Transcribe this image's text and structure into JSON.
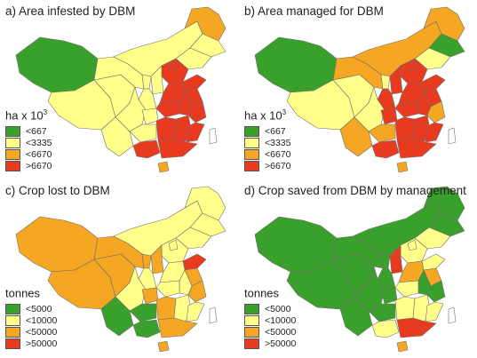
{
  "colors": {
    "green": "#3aa02c",
    "yellow": "#ffff8a",
    "orange": "#f5a623",
    "red": "#e83a1e",
    "grey": "#ffffff",
    "border": "#6f6f6f"
  },
  "panels": [
    {
      "id": "a",
      "title": "a) Area infested by DBM",
      "unit_base": "ha x 10",
      "unit_exp": "3",
      "legend": [
        {
          "label": "<667",
          "color": "green"
        },
        {
          "label": "<3335",
          "color": "yellow"
        },
        {
          "label": "<6670",
          "color": "orange"
        },
        {
          "label": ">6670",
          "color": "red"
        }
      ],
      "regions": {
        "xinjiang": "green",
        "tibet": "yellow",
        "qinghai": "yellow",
        "gansu": "yellow",
        "innermongolia": "yellow",
        "heilongjiang": "orange",
        "jilin": "yellow",
        "liaoning": "yellow",
        "beijing": "red",
        "hebei": "red",
        "shanxi": "yellow",
        "shaanxi": "yellow",
        "ningxia": "yellow",
        "shandong": "red",
        "henan": "red",
        "jiangsu": "red",
        "anhui": "red",
        "hubei": "red",
        "sichuan": "yellow",
        "chongqing": "yellow",
        "yunnan": "yellow",
        "guizhou": "yellow",
        "hunan": "red",
        "jiangxi": "red",
        "zhejiang": "red",
        "fujian": "red",
        "guangdong": "red",
        "guangxi": "red",
        "hainan": "orange",
        "taiwan": "grey"
      }
    },
    {
      "id": "b",
      "title": "b) Area managed for DBM",
      "unit_base": "ha x 10",
      "unit_exp": "3",
      "legend": [
        {
          "label": "<667",
          "color": "green"
        },
        {
          "label": "<3335",
          "color": "yellow"
        },
        {
          "label": "<6670",
          "color": "orange"
        },
        {
          "label": ">6670",
          "color": "red"
        }
      ],
      "regions": {
        "xinjiang": "green",
        "tibet": "yellow",
        "qinghai": "yellow",
        "gansu": "orange",
        "innermongolia": "orange",
        "heilongjiang": "orange",
        "jilin": "green",
        "liaoning": "yellow",
        "beijing": "red",
        "hebei": "red",
        "shanxi": "red",
        "shaanxi": "red",
        "ningxia": "yellow",
        "shandong": "red",
        "henan": "red",
        "jiangsu": "red",
        "anhui": "red",
        "hubei": "red",
        "sichuan": "yellow",
        "chongqing": "red",
        "yunnan": "orange",
        "guizhou": "orange",
        "hunan": "red",
        "jiangxi": "red",
        "zhejiang": "orange",
        "fujian": "red",
        "guangdong": "red",
        "guangxi": "red",
        "hainan": "orange",
        "taiwan": "grey"
      }
    },
    {
      "id": "c",
      "title": "c) Crop lost to DBM",
      "unit_base": "tonnes",
      "unit_exp": "",
      "legend": [
        {
          "label": "<5000",
          "color": "green"
        },
        {
          "label": "<10000",
          "color": "yellow"
        },
        {
          "label": "<50000",
          "color": "orange"
        },
        {
          "label": ">50000",
          "color": "red"
        }
      ],
      "regions": {
        "xinjiang": "orange",
        "tibet": "orange",
        "qinghai": "orange",
        "gansu": "orange",
        "innermongolia": "yellow",
        "heilongjiang": "yellow",
        "jilin": "yellow",
        "liaoning": "yellow",
        "beijing": "yellow",
        "hebei": "yellow",
        "shanxi": "orange",
        "shaanxi": "yellow",
        "ningxia": "orange",
        "shandong": "red",
        "henan": "yellow",
        "jiangsu": "orange",
        "anhui": "yellow",
        "hubei": "yellow",
        "sichuan": "yellow",
        "chongqing": "orange",
        "yunnan": "green",
        "guizhou": "green",
        "hunan": "orange",
        "jiangxi": "yellow",
        "zhejiang": "orange",
        "fujian": "yellow",
        "guangdong": "orange",
        "guangxi": "green",
        "hainan": "orange",
        "taiwan": "grey"
      }
    },
    {
      "id": "d",
      "title": "d) Crop saved from DBM by management",
      "unit_base": "tonnes",
      "unit_exp": "",
      "legend": [
        {
          "label": "<5000",
          "color": "green"
        },
        {
          "label": "<10000",
          "color": "yellow"
        },
        {
          "label": "<50000",
          "color": "orange"
        },
        {
          "label": ">50000",
          "color": "red"
        }
      ],
      "regions": {
        "xinjiang": "green",
        "tibet": "green",
        "qinghai": "green",
        "gansu": "green",
        "innermongolia": "green",
        "heilongjiang": "green",
        "jilin": "green",
        "liaoning": "yellow",
        "beijing": "yellow",
        "hebei": "yellow",
        "shanxi": "red",
        "shaanxi": "green",
        "ningxia": "green",
        "shandong": "yellow",
        "henan": "orange",
        "jiangsu": "orange",
        "anhui": "green",
        "hubei": "yellow",
        "sichuan": "green",
        "chongqing": "green",
        "yunnan": "green",
        "guizhou": "green",
        "hunan": "yellow",
        "jiangxi": "yellow",
        "zhejiang": "green",
        "fujian": "yellow",
        "guangdong": "red",
        "guangxi": "yellow",
        "hainan": "orange",
        "taiwan": "grey"
      }
    }
  ]
}
